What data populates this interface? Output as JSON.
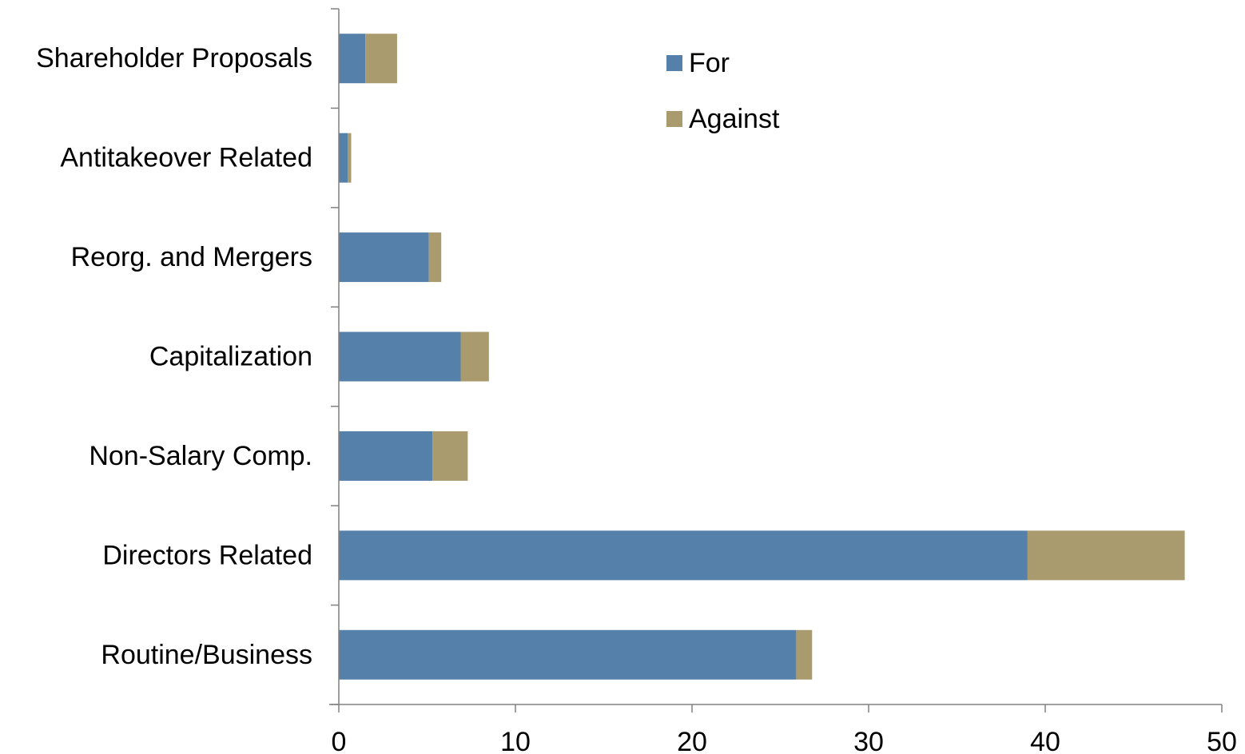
{
  "chart_data": {
    "type": "bar",
    "orientation": "horizontal",
    "stacked": true,
    "categories": [
      "Shareholder Proposals",
      "Antitakeover Related",
      "Reorg. and Mergers",
      "Capitalization",
      "Non-Salary Comp.",
      "Directors Related",
      "Routine/Business"
    ],
    "series": [
      {
        "name": "For",
        "color": "#5580AA",
        "values": [
          1.5,
          0.5,
          5.1,
          6.9,
          5.3,
          39.0,
          25.9
        ]
      },
      {
        "name": "Against",
        "color": "#AA9B6E",
        "values": [
          1.8,
          0.2,
          0.7,
          1.6,
          2.0,
          8.9,
          0.9
        ]
      }
    ],
    "x_ticks": [
      "0",
      "10",
      "20",
      "30",
      "40",
      "50"
    ],
    "xlim": [
      0,
      50
    ],
    "legend_position": "top-center",
    "grid": false,
    "title": "",
    "xlabel": "",
    "ylabel": ""
  }
}
